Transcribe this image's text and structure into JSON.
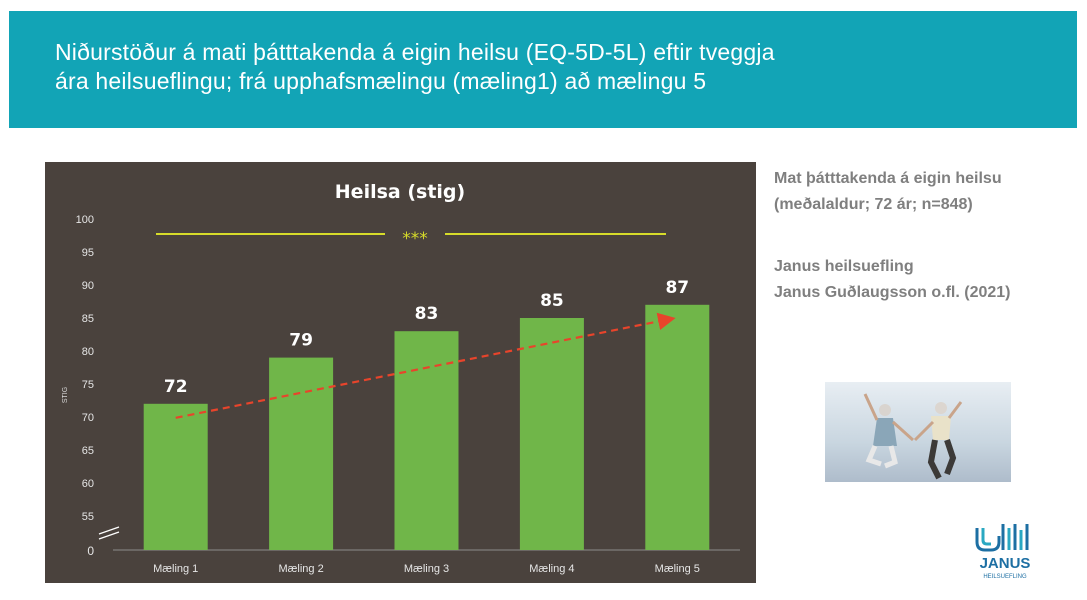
{
  "banner": {
    "title_line1": "Niðurstöður á mati þátttakenda á eigin heilsu (EQ-5D-5L) eftir tveggja",
    "title_line2": "ára heilsueflingu; frá upphafsmælingu (mæling1) að mælingu 5",
    "color": "#12a4b6"
  },
  "side": {
    "line1": "Mat þátttakenda á eigin heilsu",
    "line2": "(meðalaldur; 72 ár; n=848)",
    "line3": "Janus heilsuefling",
    "line4": "Janus Guðlaugsson o.fl. (2021)"
  },
  "logo": {
    "name": "JANUS",
    "tagline": "HEILSUEFLING",
    "color": "#1d6fa3"
  },
  "chart_data": {
    "type": "bar",
    "title": "Heilsa   (stig)",
    "ylabel": "STIG",
    "categories": [
      "Mæling 1",
      "Mæling 2",
      "Mæling 3",
      "Mæling 4",
      "Mæling 5"
    ],
    "values": [
      72,
      79,
      83,
      85,
      87
    ],
    "data_labels": [
      "72",
      "79",
      "83",
      "85",
      "87"
    ],
    "y_ticks": [
      "0",
      "55",
      "60",
      "65",
      "70",
      "75",
      "80",
      "85",
      "90",
      "95",
      "100"
    ],
    "ylim": [
      50,
      100
    ],
    "axis_break": true,
    "grid": false,
    "significance": "***",
    "trend": "increasing",
    "colors": {
      "background": "#4a423d",
      "bar": "#70b649",
      "trend_line": "#e8442b",
      "significance_line": "#d7dc2a",
      "text": "#ffffff",
      "tick_text": "#e6e6e6"
    }
  }
}
